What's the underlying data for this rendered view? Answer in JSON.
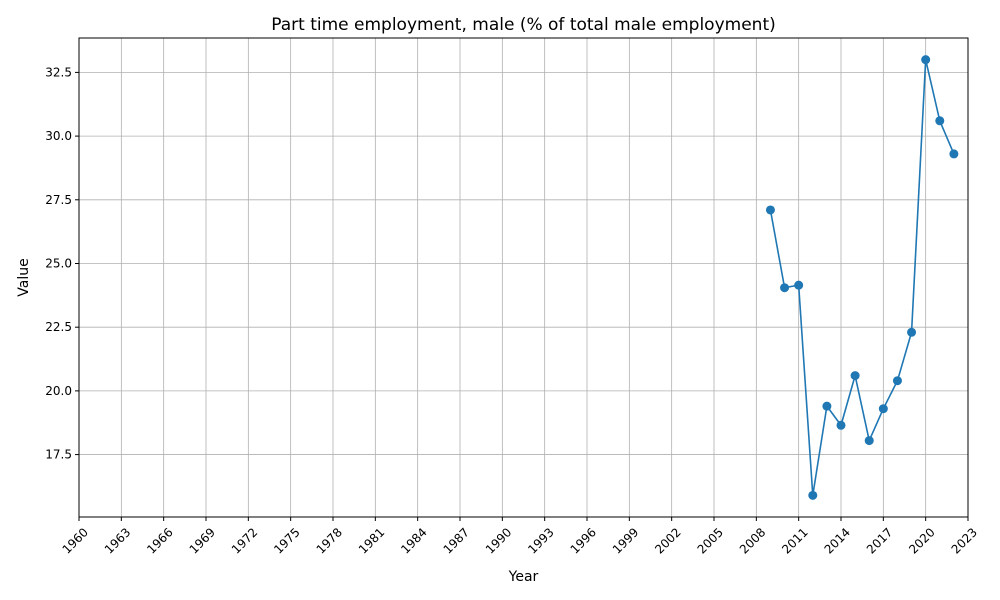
{
  "chart_data": {
    "type": "line",
    "title": "Part time employment, male (% of total male employment)",
    "xlabel": "Year",
    "ylabel": "Value",
    "xlim": [
      1960,
      2023
    ],
    "ylim": [
      15.05,
      33.85
    ],
    "x_ticks": [
      1960,
      1963,
      1966,
      1969,
      1972,
      1975,
      1978,
      1981,
      1984,
      1987,
      1990,
      1993,
      1996,
      1999,
      2002,
      2005,
      2008,
      2011,
      2014,
      2017,
      2020,
      2023
    ],
    "y_ticks": [
      17.5,
      20.0,
      22.5,
      25.0,
      27.5,
      30.0,
      32.5
    ],
    "grid": true,
    "series": [
      {
        "color": "#1f77b4",
        "marker": "circle",
        "x": [
          2009,
          2010,
          2011,
          2012,
          2013,
          2014,
          2015,
          2016,
          2017,
          2018,
          2019,
          2020,
          2021,
          2022
        ],
        "values": [
          27.1,
          24.05,
          24.15,
          15.9,
          19.4,
          18.65,
          20.6,
          18.05,
          19.3,
          20.4,
          22.3,
          33.0,
          30.6,
          29.3
        ]
      }
    ]
  }
}
